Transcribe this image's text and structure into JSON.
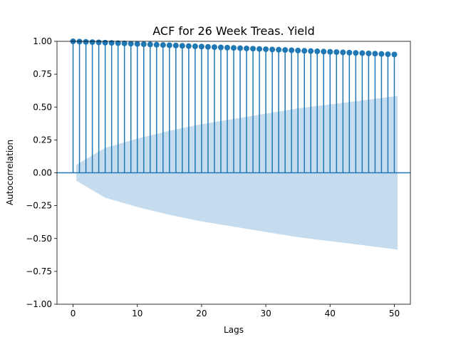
{
  "chart_data": {
    "type": "stem",
    "title": "ACF for 26 Week Treas. Yield",
    "xlabel": "Lags",
    "ylabel": "Autocorrelation",
    "xlim": [
      -2.5,
      52.5
    ],
    "ylim": [
      -1.0,
      1.0
    ],
    "x_ticks": [
      "0",
      "10",
      "20",
      "30",
      "40",
      "50"
    ],
    "y_ticks": [
      "−1.00",
      "−0.75",
      "−0.50",
      "−0.25",
      "0.00",
      "0.25",
      "0.50",
      "0.75",
      "1.00"
    ],
    "grid": false,
    "colors": {
      "stem": "#1f77b4",
      "band": "#c5dcee"
    },
    "series": [
      {
        "lags": [
          0,
          1,
          2,
          3,
          4,
          5,
          6,
          7,
          8,
          9,
          10,
          11,
          12,
          13,
          14,
          15,
          16,
          17,
          18,
          19,
          20,
          21,
          22,
          23,
          24,
          25,
          26,
          27,
          28,
          29,
          30,
          31,
          32,
          33,
          34,
          35,
          36,
          37,
          38,
          39,
          40,
          41,
          42,
          43,
          44,
          45,
          46,
          47,
          48,
          49,
          50
        ],
        "values": [
          1.0,
          0.998,
          0.996,
          0.994,
          0.992,
          0.99,
          0.988,
          0.986,
          0.984,
          0.982,
          0.98,
          0.978,
          0.976,
          0.974,
          0.972,
          0.97,
          0.968,
          0.966,
          0.964,
          0.962,
          0.96,
          0.958,
          0.956,
          0.954,
          0.952,
          0.95,
          0.948,
          0.946,
          0.944,
          0.942,
          0.94,
          0.938,
          0.936,
          0.934,
          0.932,
          0.93,
          0.928,
          0.926,
          0.924,
          0.922,
          0.92,
          0.918,
          0.916,
          0.914,
          0.912,
          0.91,
          0.908,
          0.906,
          0.904,
          0.902,
          0.9
        ]
      }
    ],
    "confidence_band": {
      "lags": [
        0.5,
        5,
        10,
        15,
        20,
        25,
        30,
        35,
        40,
        45,
        50.5
      ],
      "upper": [
        0.06,
        0.19,
        0.26,
        0.32,
        0.37,
        0.41,
        0.45,
        0.49,
        0.52,
        0.55,
        0.585
      ]
    }
  }
}
